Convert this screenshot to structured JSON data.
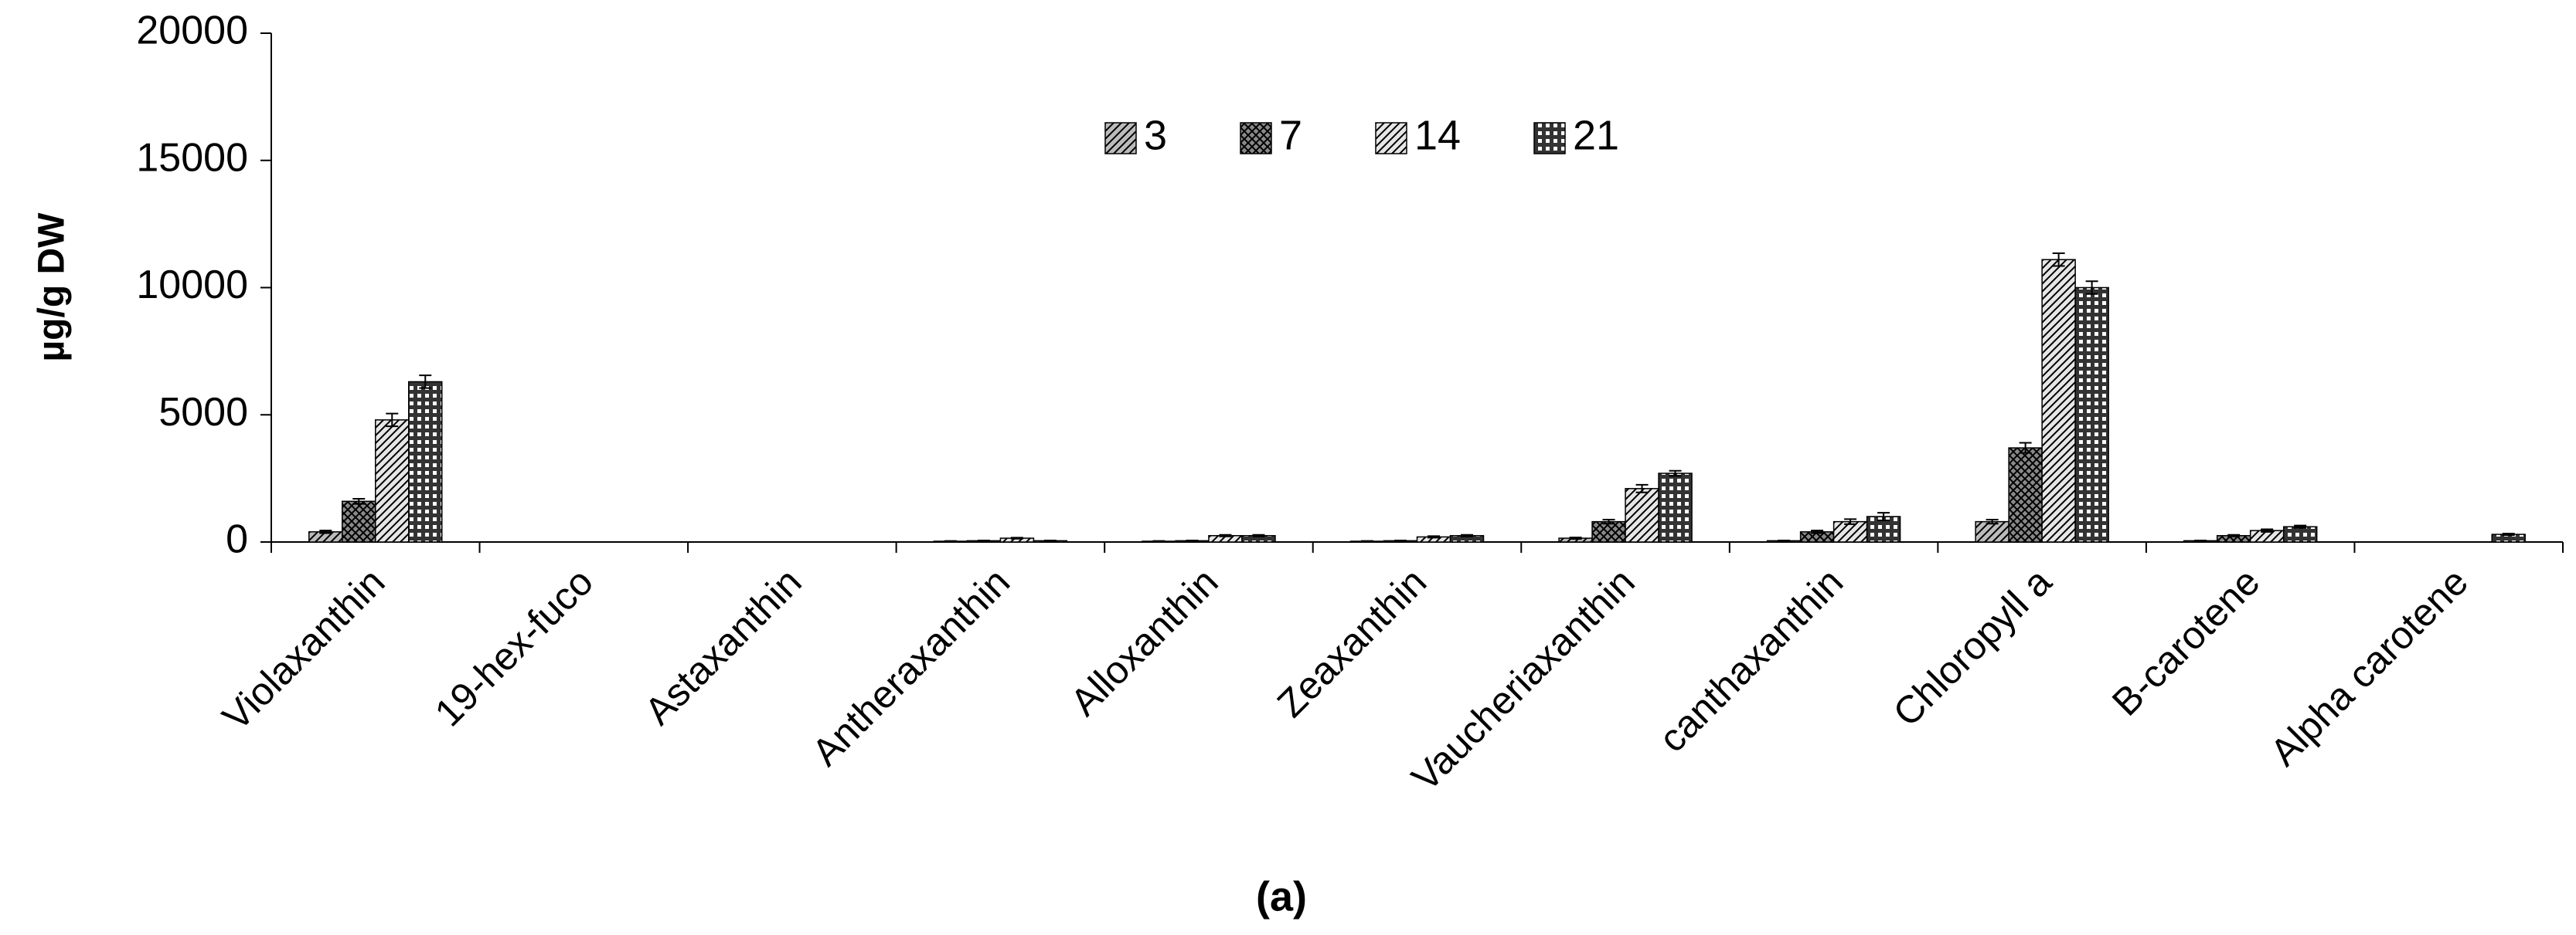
{
  "chart_data": {
    "type": "bar",
    "y_label": "µg/g DW",
    "caption": "(a)",
    "categories": [
      "Violaxanthin",
      "19-hex-fuco",
      "Astaxanthin",
      "Antheraxanthin",
      "Alloxanthin",
      "Zeaxanthin",
      "Vaucheriaxanthin",
      "canthaxanthin",
      "Chloropyll a",
      "B-carotene",
      "Alpha carotene"
    ],
    "series": [
      {
        "name": "3",
        "color": "#bbbbbb",
        "pattern": "hatch",
        "values": [
          400,
          0,
          0,
          30,
          30,
          30,
          150,
          50,
          800,
          50,
          0
        ],
        "errors": [
          50,
          0,
          0,
          10,
          10,
          10,
          30,
          10,
          80,
          10,
          0
        ]
      },
      {
        "name": "7",
        "color": "#888888",
        "pattern": "cross",
        "values": [
          1600,
          0,
          0,
          50,
          50,
          50,
          800,
          400,
          3700,
          250,
          0
        ],
        "errors": [
          100,
          0,
          0,
          10,
          10,
          10,
          80,
          50,
          200,
          30,
          0
        ]
      },
      {
        "name": "14",
        "color": "#e6e6e6",
        "pattern": "hatch",
        "values": [
          4800,
          0,
          0,
          150,
          250,
          200,
          2100,
          800,
          11100,
          450,
          0
        ],
        "errors": [
          250,
          0,
          0,
          20,
          30,
          30,
          150,
          100,
          250,
          50,
          0
        ]
      },
      {
        "name": "21",
        "color": "#333333",
        "pattern": "checker",
        "values": [
          6300,
          0,
          0,
          50,
          250,
          250,
          2700,
          1000,
          10000,
          600,
          300
        ],
        "errors": [
          250,
          0,
          0,
          10,
          30,
          30,
          100,
          150,
          250,
          50,
          30
        ]
      }
    ],
    "ylim": [
      0,
      20000
    ],
    "yticks": [
      0,
      5000,
      10000,
      15000,
      20000
    ],
    "grid": false
  }
}
